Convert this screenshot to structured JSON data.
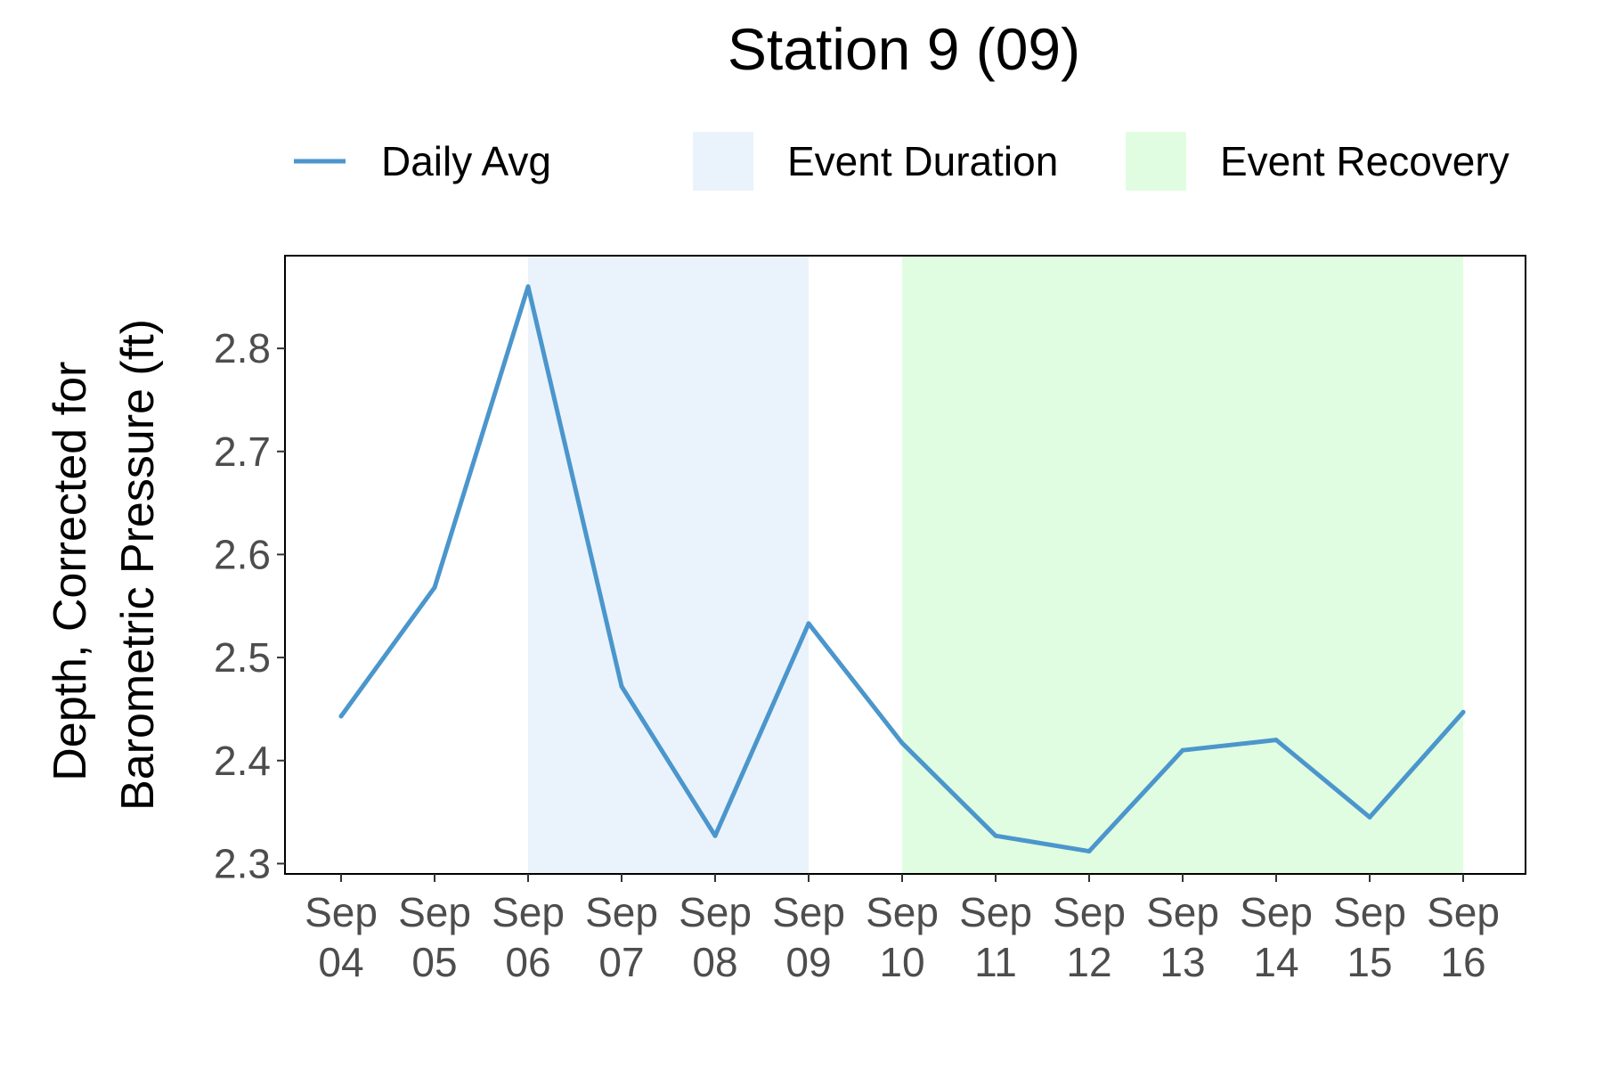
{
  "chart_data": {
    "type": "line",
    "title": "Station 9 (09)",
    "ylabel_lines": [
      "Depth, Corrected for",
      "Barometric Pressure (ft)"
    ],
    "xlabel": "",
    "x_tick_labels": [
      [
        "Sep",
        "04"
      ],
      [
        "Sep",
        "05"
      ],
      [
        "Sep",
        "06"
      ],
      [
        "Sep",
        "07"
      ],
      [
        "Sep",
        "08"
      ],
      [
        "Sep",
        "09"
      ],
      [
        "Sep",
        "10"
      ],
      [
        "Sep",
        "11"
      ],
      [
        "Sep",
        "12"
      ],
      [
        "Sep",
        "13"
      ],
      [
        "Sep",
        "14"
      ],
      [
        "Sep",
        "15"
      ],
      [
        "Sep",
        "16"
      ]
    ],
    "y_ticks": [
      "2.3",
      "2.4",
      "2.5",
      "2.6",
      "2.7",
      "2.8"
    ],
    "ylim": [
      2.29,
      2.89
    ],
    "x_dates": [
      "Sep 04",
      "Sep 05",
      "Sep 06",
      "Sep 07",
      "Sep 08",
      "Sep 09",
      "Sep 10",
      "Sep 11",
      "Sep 12",
      "Sep 13",
      "Sep 14",
      "Sep 15",
      "Sep 16"
    ],
    "series": [
      {
        "name": "Daily Avg",
        "color": "#4b96cc",
        "values": [
          2.443,
          2.568,
          2.86,
          2.472,
          2.327,
          2.533,
          2.417,
          2.327,
          2.312,
          2.41,
          2.42,
          2.345,
          2.447
        ]
      }
    ],
    "shaded_regions": [
      {
        "name": "Event Duration",
        "color": "#eaf3fb",
        "start": "Sep 06",
        "end": "Sep 09"
      },
      {
        "name": "Event Recovery",
        "color": "#e1fde1",
        "start": "Sep 10",
        "end": "Sep 16"
      }
    ],
    "legend": {
      "placement": "top",
      "entries": [
        "Daily Avg",
        "Event Duration",
        "Event Recovery"
      ]
    },
    "grid": false
  }
}
